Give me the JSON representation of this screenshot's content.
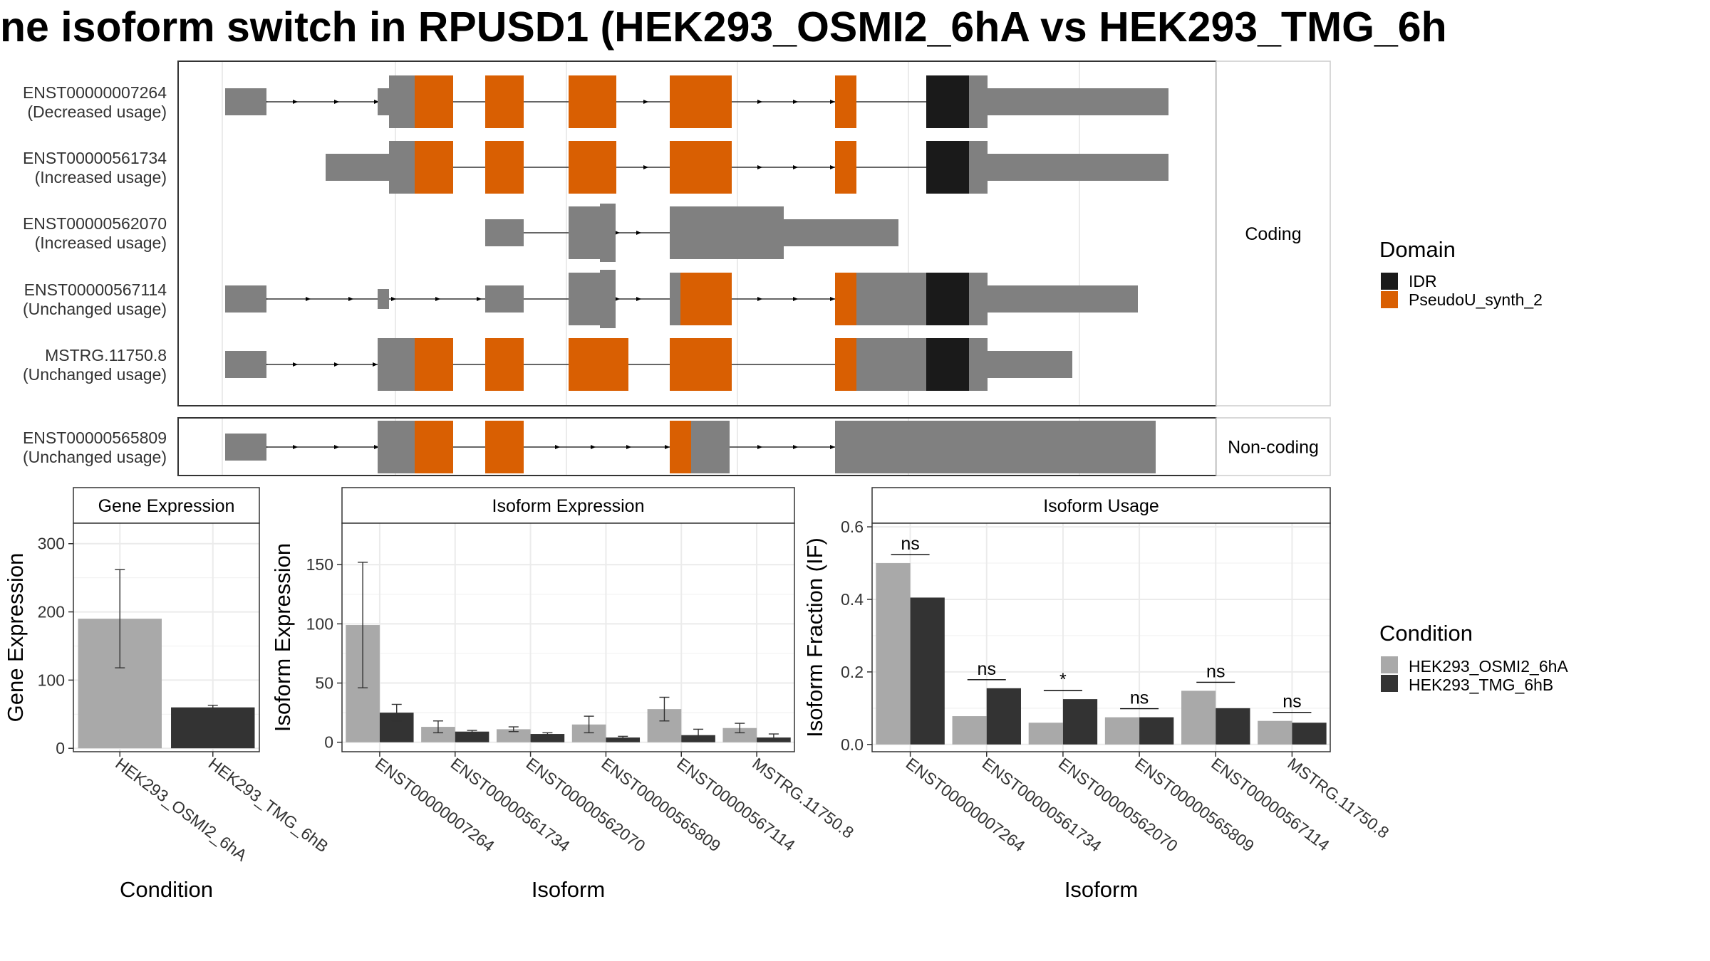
{
  "title": "ne isoform switch in RPUSD1 (HEK293_OSMI2_6hA vs HEK293_TMG_6h",
  "colors": {
    "exon": "#808080",
    "IDR": "#1a1a1a",
    "PseudoU_synth_2": "#d95f02",
    "HEK293_OSMI2_6hA": "#a9a9a9",
    "HEK293_TMG_6hB": "#333333"
  },
  "structure": {
    "coding_label": "Coding",
    "noncoding_label": "Non-coding",
    "isoforms": [
      {
        "id": "ENST00000007264",
        "usage": "(Decreased usage)",
        "group": "coding"
      },
      {
        "id": "ENST00000561734",
        "usage": "(Increased usage)",
        "group": "coding"
      },
      {
        "id": "ENST00000562070",
        "usage": "(Increased usage)",
        "group": "coding"
      },
      {
        "id": "ENST00000567114",
        "usage": "(Unchanged usage)",
        "group": "coding"
      },
      {
        "id": "MSTRG.11750.8",
        "usage": "(Unchanged usage)",
        "group": "coding"
      },
      {
        "id": "ENST00000565809",
        "usage": "(Unchanged usage)",
        "group": "non-coding"
      }
    ]
  },
  "legend_domain": {
    "title": "Domain",
    "items": [
      "IDR",
      "PseudoU_synth_2"
    ]
  },
  "legend_condition": {
    "title": "Condition",
    "items": [
      "HEK293_OSMI2_6hA",
      "HEK293_TMG_6hB"
    ]
  },
  "chart_data": [
    {
      "type": "bar",
      "panel": "Gene Expression",
      "xlabel": "Condition",
      "ylabel": "Gene Expression",
      "categories": [
        "HEK293_OSMI2_6hA",
        "HEK293_TMG_6hB"
      ],
      "values": [
        190,
        60
      ],
      "error_low": [
        118,
        57
      ],
      "error_high": [
        262,
        63
      ],
      "yticks": [
        0,
        100,
        200,
        300
      ],
      "ylim": [
        -5,
        330
      ],
      "grid": true
    },
    {
      "type": "bar",
      "panel": "Isoform Expression",
      "xlabel": "Isoform",
      "ylabel": "Isoform Expression",
      "categories": [
        "ENST00000007264",
        "ENST00000561734",
        "ENST00000562070",
        "ENST00000565809",
        "ENST00000567114",
        "MSTRG.11750.8"
      ],
      "series": [
        {
          "name": "HEK293_OSMI2_6hA",
          "values": [
            99,
            13,
            11,
            15,
            28,
            12
          ],
          "error_low": [
            46,
            8,
            9,
            8,
            18,
            8
          ],
          "error_high": [
            152,
            18,
            13,
            22,
            38,
            16
          ]
        },
        {
          "name": "HEK293_TMG_6hB",
          "values": [
            25,
            9,
            7,
            4,
            6,
            4
          ],
          "error_low": [
            18,
            8,
            6,
            3,
            2,
            2
          ],
          "error_high": [
            32,
            10,
            8,
            5,
            11,
            7
          ]
        }
      ],
      "yticks": [
        0,
        50,
        100,
        150
      ],
      "ylim": [
        -8,
        185
      ],
      "grid": true
    },
    {
      "type": "bar",
      "panel": "Isoform Usage",
      "xlabel": "Isoform",
      "ylabel": "Isoform Fraction (IF)",
      "categories": [
        "ENST00000007264",
        "ENST00000561734",
        "ENST00000562070",
        "ENST00000565809",
        "ENST00000567114",
        "MSTRG.11750.8"
      ],
      "series": [
        {
          "name": "HEK293_OSMI2_6hA",
          "values": [
            0.5,
            0.078,
            0.06,
            0.075,
            0.148,
            0.065
          ]
        },
        {
          "name": "HEK293_TMG_6hB",
          "values": [
            0.405,
            0.155,
            0.125,
            0.075,
            0.1,
            0.06
          ]
        }
      ],
      "significance": [
        "ns",
        "ns",
        "*",
        "ns",
        "ns",
        "ns"
      ],
      "yticks": [
        0.0,
        0.2,
        0.4,
        0.6
      ],
      "ytick_labels": [
        "0.0",
        "0.2",
        "0.4",
        "0.6"
      ],
      "ylim": [
        -0.02,
        0.61
      ],
      "grid": true
    }
  ]
}
